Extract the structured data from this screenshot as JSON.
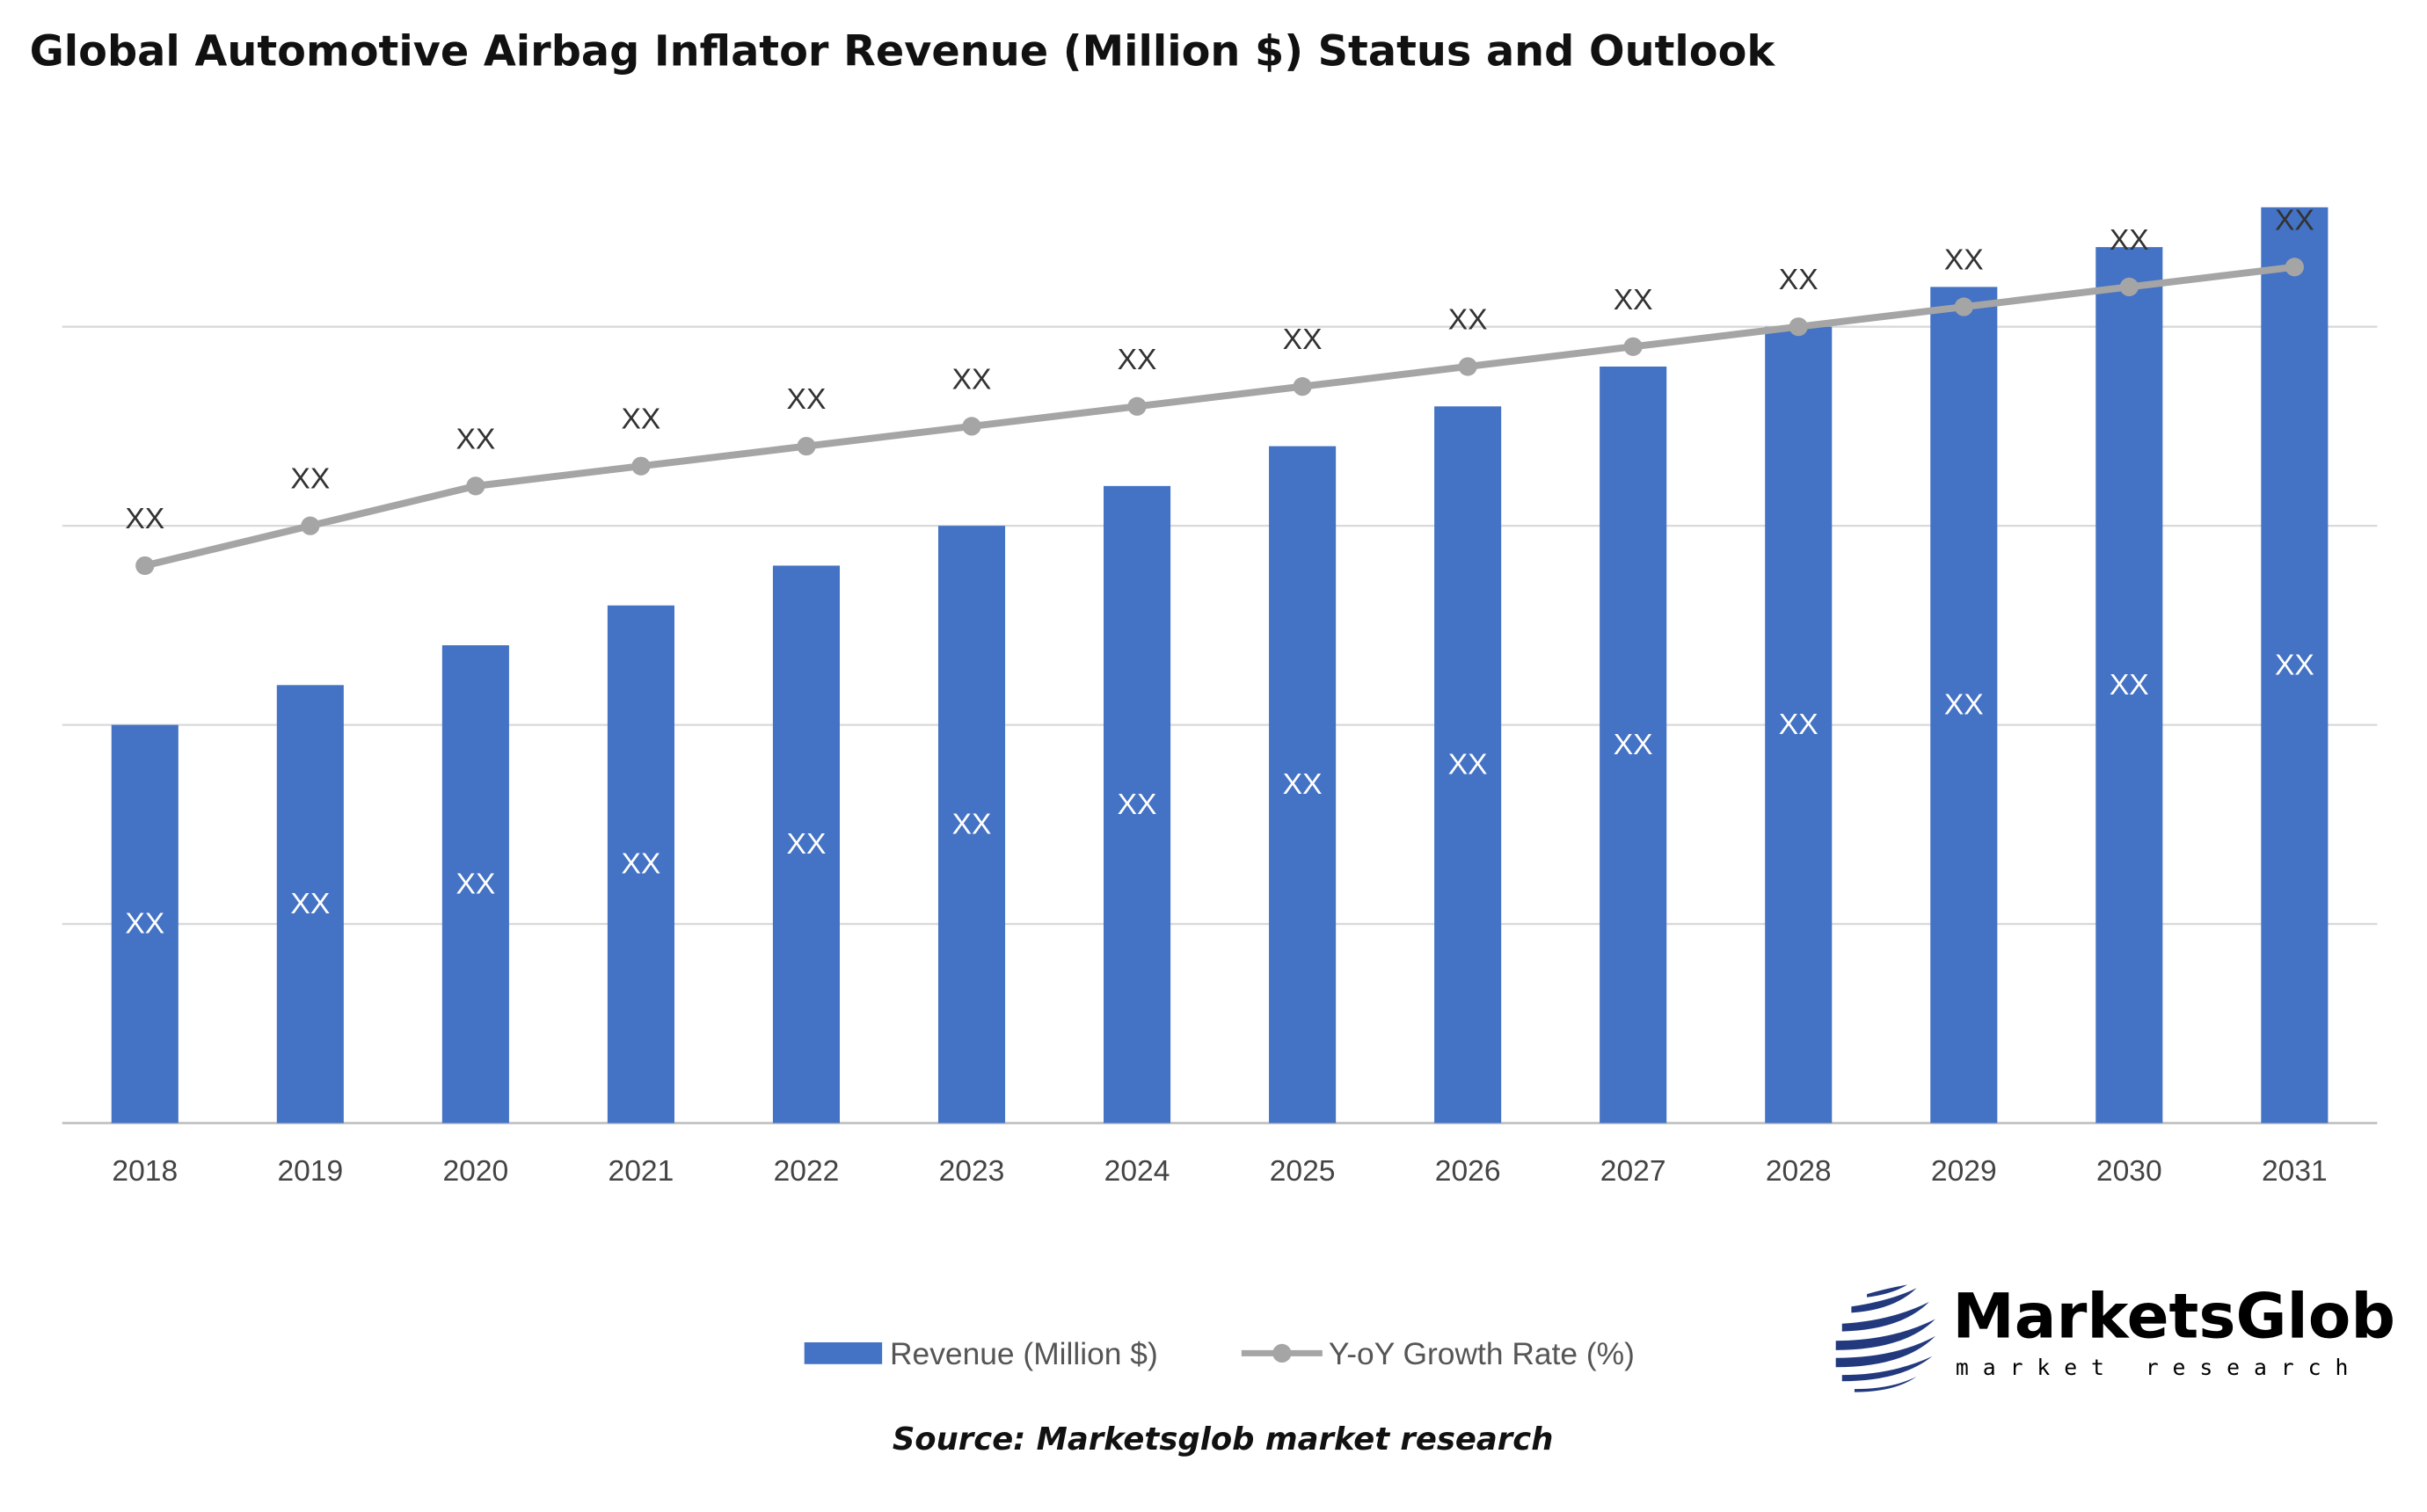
{
  "chart_data": {
    "type": "bar",
    "title": "Global Automotive Airbag Inflator Revenue (Million $) Status and Outlook",
    "xlabel": "",
    "ylabel": "",
    "categories": [
      "2018",
      "2019",
      "2020",
      "2021",
      "2022",
      "2023",
      "2024",
      "2025",
      "2026",
      "2027",
      "2028",
      "2029",
      "2030",
      "2031"
    ],
    "series": [
      {
        "name": "Revenue (Million $)",
        "type": "bar",
        "color": "#4472C4",
        "values": [
          2.0,
          2.2,
          2.4,
          2.6,
          2.8,
          3.0,
          3.2,
          3.4,
          3.6,
          3.8,
          4.0,
          4.2,
          4.4,
          4.6
        ],
        "data_labels": [
          "XX",
          "XX",
          "XX",
          "XX",
          "XX",
          "XX",
          "XX",
          "XX",
          "XX",
          "XX",
          "XX",
          "XX",
          "XX",
          "XX"
        ]
      },
      {
        "name": "Y-oY Growth Rate (%)",
        "type": "line",
        "color": "#A5A5A5",
        "values": [
          2.8,
          3.0,
          3.2,
          3.3,
          3.4,
          3.5,
          3.6,
          3.7,
          3.8,
          3.9,
          4.0,
          4.1,
          4.2,
          4.3
        ],
        "data_labels": [
          "XX",
          "XX",
          "XX",
          "XX",
          "XX",
          "XX",
          "XX",
          "XX",
          "XX",
          "XX",
          "XX",
          "XX",
          "XX",
          "XX"
        ]
      }
    ],
    "ylim": [
      0,
      5
    ],
    "grid": true,
    "legend_position": "bottom"
  },
  "source": "Source: Marketsglob market research",
  "logo": {
    "name": "MarketsGlob",
    "tagline": "market research"
  }
}
